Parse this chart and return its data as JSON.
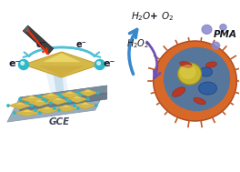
{
  "bg_color": "#ffffff",
  "labels": {
    "gce": "GCE",
    "h2o_o2": "H$_2$O+ O$_2$",
    "h2o2": "H$_2$O$_2$",
    "pma": "PMA"
  },
  "colors": {
    "nanobipyramid_dark": "#c8a030",
    "nanobipyramid_mid": "#d4b84a",
    "nanobipyramid_light": "#f0e070",
    "gce_top": "#9aacba",
    "gce_side": "#6a7a88",
    "gce_front": "#7a8c9a",
    "electron_sphere": "#30b8c8",
    "laser_red": "#e83010",
    "laser_body": "#383838",
    "beam_light": "#c0dff0",
    "beam_mid": "#a8cce4",
    "arrow_blue": "#3888cc",
    "arrow_purple": "#7050b8",
    "drop_color": "#8888cc",
    "cell_outer": "#d86828",
    "cell_spike": "#c05828",
    "cell_blue": "#4878a8",
    "cell_blue2": "#3060a0",
    "nucleus_yellow": "#c8b830",
    "nucleus_light": "#e0d050",
    "mito_red": "#b83828",
    "mito_dark": "#902818",
    "text_color": "#151520"
  },
  "figsize": [
    2.64,
    1.89
  ],
  "dpi": 100
}
